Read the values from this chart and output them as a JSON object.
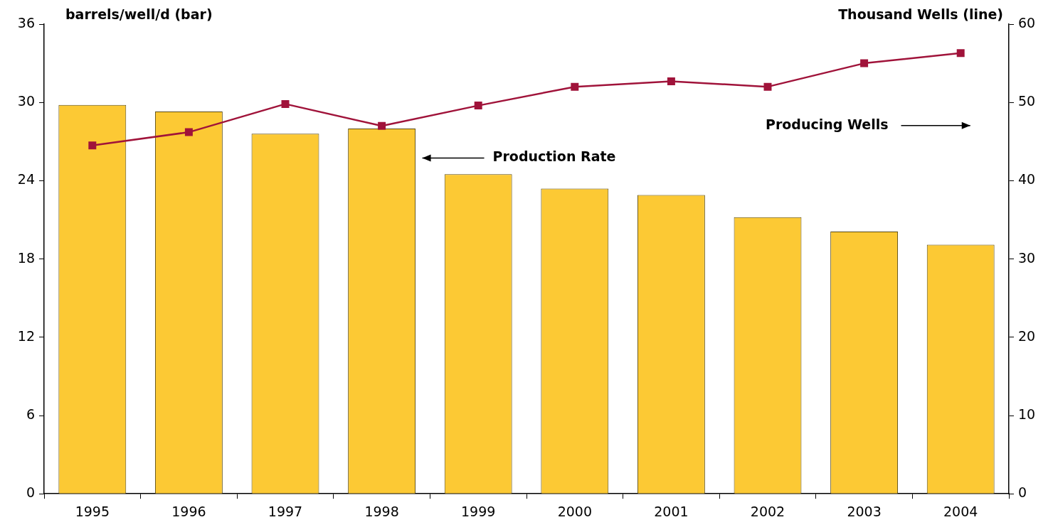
{
  "chart_data": {
    "type": "bar",
    "ylabel": "barrels/well/d (bar)",
    "y2label": "Thousand Wells (line)",
    "categories": [
      "1995",
      "1996",
      "1997",
      "1998",
      "1999",
      "2000",
      "2001",
      "2002",
      "2003",
      "2004"
    ],
    "series": [
      {
        "name": "Production Rate",
        "color": "#fcc934",
        "values": [
          29.8,
          29.3,
          27.6,
          28.0,
          24.5,
          23.4,
          22.9,
          21.2,
          20.1,
          19.1
        ]
      },
      {
        "name": "Producing Wells",
        "type": "line",
        "axis": "y2",
        "color": "#a0133a",
        "marker": "square",
        "values": [
          44.5,
          46.2,
          49.8,
          47.0,
          49.6,
          52.0,
          52.7,
          52.0,
          55.0,
          56.3
        ]
      }
    ],
    "ylim": [
      0,
      36
    ],
    "yticks": [
      0,
      6,
      12,
      18,
      24,
      30,
      36
    ],
    "y2lim": [
      0,
      60
    ],
    "y2ticks": [
      0,
      10,
      20,
      30,
      40,
      50,
      60
    ],
    "grid": false,
    "legend": false
  }
}
